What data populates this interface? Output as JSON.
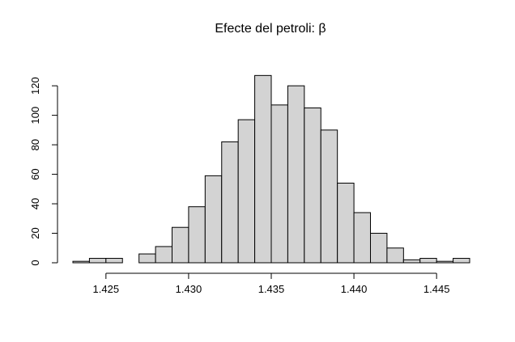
{
  "chart_data": {
    "type": "bar",
    "title": "Efecte del petroli:  β",
    "xlabel": "",
    "ylabel": "",
    "bin_width": 0.001,
    "bins": [
      {
        "start": 1.423,
        "end": 1.424,
        "value": 1
      },
      {
        "start": 1.424,
        "end": 1.425,
        "value": 3
      },
      {
        "start": 1.425,
        "end": 1.426,
        "value": 3
      },
      {
        "start": 1.426,
        "end": 1.427,
        "value": 0
      },
      {
        "start": 1.427,
        "end": 1.428,
        "value": 6
      },
      {
        "start": 1.428,
        "end": 1.429,
        "value": 11
      },
      {
        "start": 1.429,
        "end": 1.43,
        "value": 24
      },
      {
        "start": 1.43,
        "end": 1.431,
        "value": 38
      },
      {
        "start": 1.431,
        "end": 1.432,
        "value": 59
      },
      {
        "start": 1.432,
        "end": 1.433,
        "value": 82
      },
      {
        "start": 1.433,
        "end": 1.434,
        "value": 97
      },
      {
        "start": 1.434,
        "end": 1.435,
        "value": 127
      },
      {
        "start": 1.435,
        "end": 1.436,
        "value": 107
      },
      {
        "start": 1.436,
        "end": 1.437,
        "value": 120
      },
      {
        "start": 1.437,
        "end": 1.438,
        "value": 105
      },
      {
        "start": 1.438,
        "end": 1.439,
        "value": 90
      },
      {
        "start": 1.439,
        "end": 1.44,
        "value": 54
      },
      {
        "start": 1.44,
        "end": 1.441,
        "value": 34
      },
      {
        "start": 1.441,
        "end": 1.442,
        "value": 20
      },
      {
        "start": 1.442,
        "end": 1.443,
        "value": 10
      },
      {
        "start": 1.443,
        "end": 1.444,
        "value": 2
      },
      {
        "start": 1.444,
        "end": 1.445,
        "value": 3
      },
      {
        "start": 1.445,
        "end": 1.446,
        "value": 1
      },
      {
        "start": 1.446,
        "end": 1.447,
        "value": 3
      }
    ],
    "xlim": [
      1.423,
      1.447
    ],
    "ylim": [
      0,
      130
    ],
    "x_ticks": [
      {
        "value": 1.425,
        "label": "1.425"
      },
      {
        "value": 1.43,
        "label": "1.430"
      },
      {
        "value": 1.435,
        "label": "1.435"
      },
      {
        "value": 1.44,
        "label": "1.440"
      },
      {
        "value": 1.445,
        "label": "1.445"
      }
    ],
    "y_ticks": [
      {
        "value": 0,
        "label": "0"
      },
      {
        "value": 20,
        "label": "20"
      },
      {
        "value": 40,
        "label": "40"
      },
      {
        "value": 60,
        "label": "60"
      },
      {
        "value": 80,
        "label": "80"
      },
      {
        "value": 100,
        "label": "100"
      },
      {
        "value": 120,
        "label": "120"
      }
    ],
    "grid": false,
    "bar_fill": "#d3d3d3",
    "bar_stroke": "#000000"
  }
}
